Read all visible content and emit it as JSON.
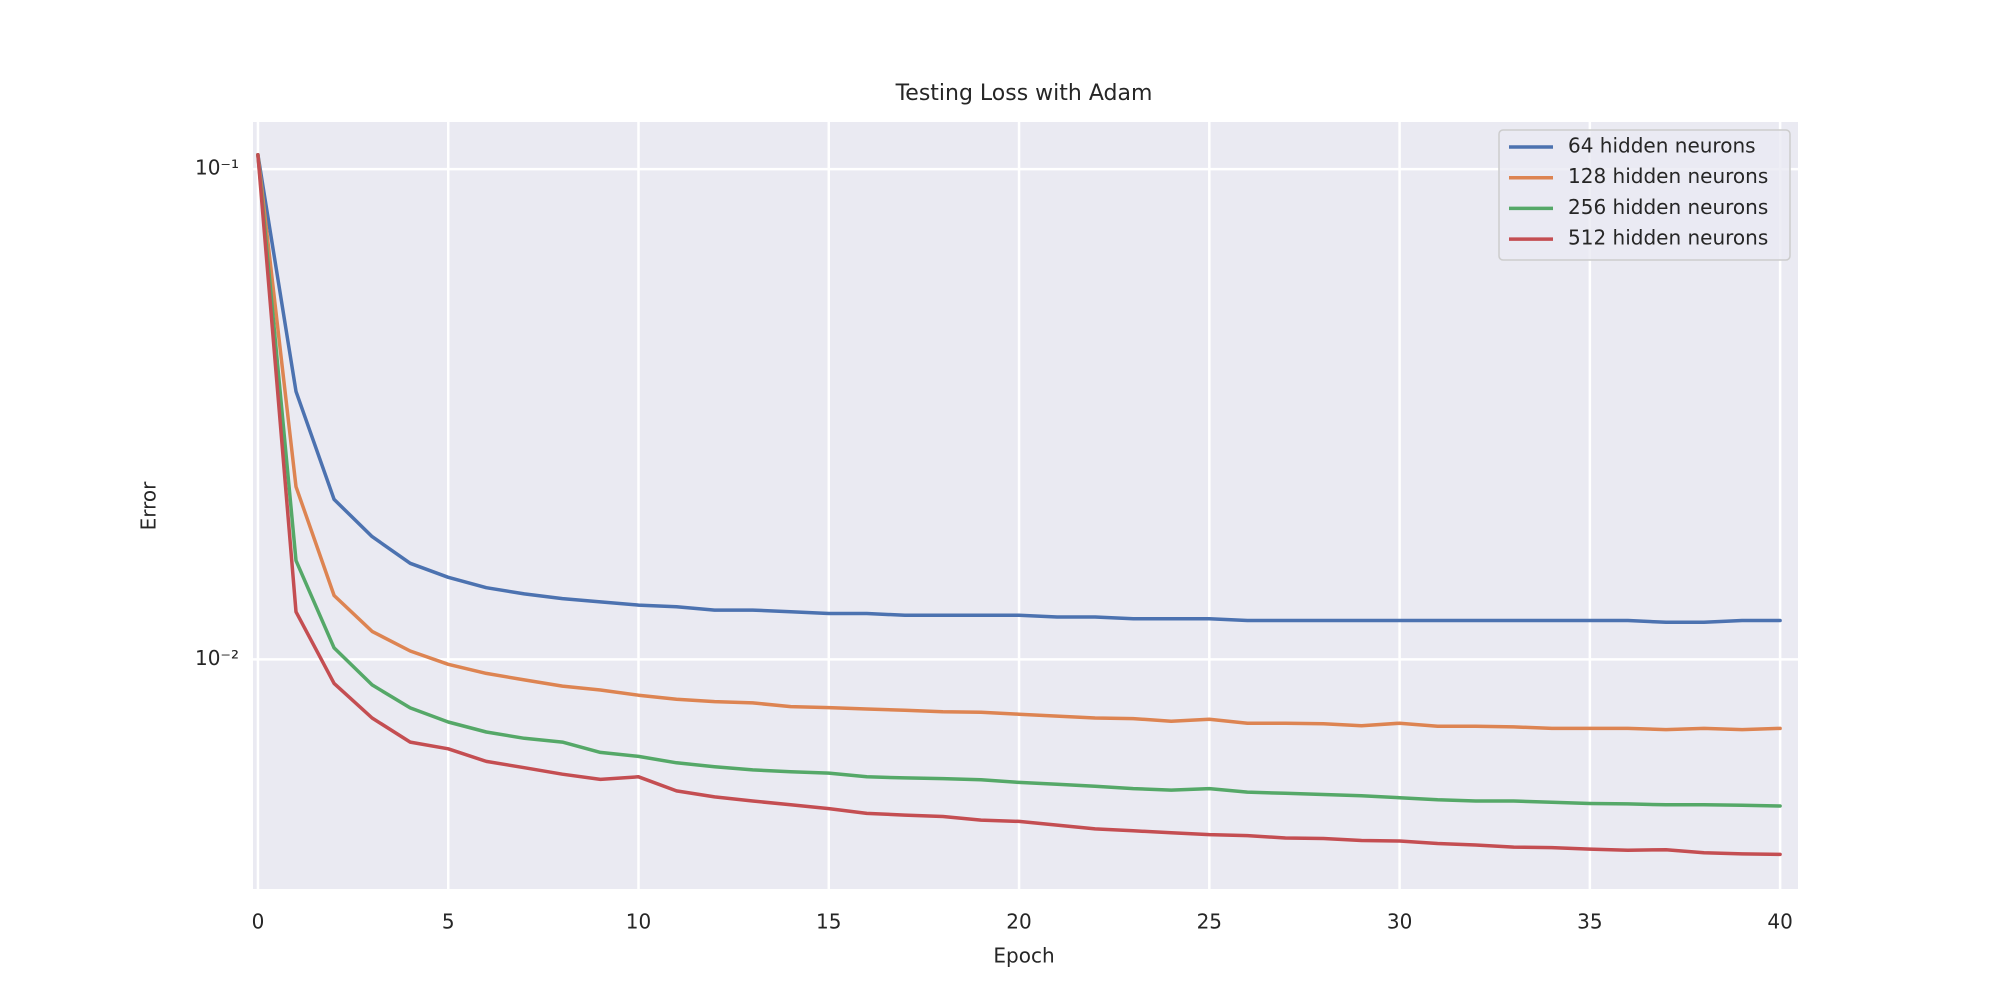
{
  "chart_data": {
    "type": "line",
    "title": "Testing Loss with Adam",
    "x_label": "Epoch",
    "y_label": "Error",
    "x": [
      0,
      1,
      2,
      3,
      4,
      5,
      6,
      7,
      8,
      9,
      10,
      11,
      12,
      13,
      14,
      15,
      16,
      17,
      18,
      19,
      20,
      21,
      22,
      23,
      24,
      25,
      26,
      27,
      28,
      29,
      30,
      31,
      32,
      33,
      34,
      35,
      36,
      37,
      38,
      39,
      40
    ],
    "series": [
      {
        "name": "64 hidden neurons",
        "color": "#4c72b0",
        "values": [
          0.107,
          0.0352,
          0.0212,
          0.0178,
          0.0157,
          0.0147,
          0.014,
          0.0136,
          0.0133,
          0.0131,
          0.0129,
          0.0128,
          0.0126,
          0.0126,
          0.0125,
          0.0124,
          0.0124,
          0.0123,
          0.0123,
          0.0123,
          0.0123,
          0.0122,
          0.0122,
          0.0121,
          0.0121,
          0.0121,
          0.012,
          0.012,
          0.012,
          0.012,
          0.012,
          0.012,
          0.012,
          0.012,
          0.012,
          0.012,
          0.012,
          0.0119,
          0.0119,
          0.012,
          0.012
        ]
      },
      {
        "name": "128 hidden neurons",
        "color": "#dd8452",
        "values": [
          0.107,
          0.0225,
          0.0135,
          0.0114,
          0.0104,
          0.00977,
          0.00936,
          0.00908,
          0.00882,
          0.00866,
          0.00845,
          0.00829,
          0.0082,
          0.00815,
          0.00801,
          0.00797,
          0.00792,
          0.00787,
          0.00782,
          0.0078,
          0.00773,
          0.00766,
          0.00759,
          0.00757,
          0.00748,
          0.00755,
          0.00741,
          0.00741,
          0.00739,
          0.00732,
          0.00741,
          0.0073,
          0.0073,
          0.00728,
          0.00723,
          0.00723,
          0.00723,
          0.00719,
          0.00723,
          0.00719,
          0.00723
        ]
      },
      {
        "name": "256 hidden neurons",
        "color": "#55a868",
        "values": [
          0.107,
          0.0159,
          0.01055,
          0.00887,
          0.00796,
          0.00745,
          0.00711,
          0.0069,
          0.00678,
          0.00646,
          0.00634,
          0.00615,
          0.00604,
          0.00595,
          0.0059,
          0.00586,
          0.00576,
          0.00573,
          0.00571,
          0.00568,
          0.00561,
          0.00556,
          0.00551,
          0.00545,
          0.00541,
          0.00545,
          0.00536,
          0.00533,
          0.0053,
          0.00527,
          0.00522,
          0.00517,
          0.00514,
          0.00514,
          0.00511,
          0.00508,
          0.00507,
          0.00505,
          0.00505,
          0.00504,
          0.00502
        ]
      },
      {
        "name": "512 hidden neurons",
        "color": "#c44e52",
        "values": [
          0.107,
          0.0125,
          0.00893,
          0.00759,
          0.00678,
          0.00657,
          0.00619,
          0.00601,
          0.00583,
          0.00569,
          0.00576,
          0.00539,
          0.00524,
          0.00514,
          0.00505,
          0.00496,
          0.00485,
          0.00481,
          0.00478,
          0.0047,
          0.00467,
          0.00459,
          0.00451,
          0.00447,
          0.00443,
          0.00439,
          0.00437,
          0.00432,
          0.00431,
          0.00427,
          0.00426,
          0.00421,
          0.00418,
          0.00414,
          0.00413,
          0.0041,
          0.00408,
          0.00409,
          0.00403,
          0.00401,
          0.004
        ]
      }
    ],
    "xlim": [
      -0.13,
      40.47
    ],
    "xticks": [
      0,
      5,
      10,
      15,
      20,
      25,
      30,
      35,
      40
    ],
    "ylim": [
      0.0034,
      0.1248
    ],
    "yticks": [
      {
        "value": 0.1,
        "label": "10⁻¹"
      },
      {
        "value": 0.01,
        "label": "10⁻²"
      }
    ],
    "y_scale": "log",
    "grid": true,
    "legend": "upper right"
  }
}
